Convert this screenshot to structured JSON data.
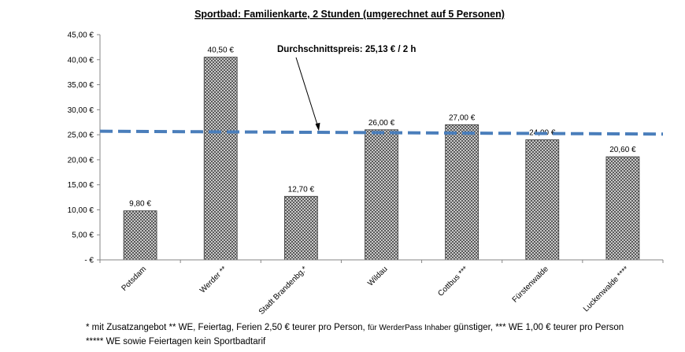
{
  "chart_data": {
    "type": "bar",
    "title": "Sportbad: Familienkarte, 2 Stunden (umgerechnet auf 5 Personen)",
    "categories": [
      "Potsdam",
      "Werder **",
      "Stadt Brandenbg.*",
      "Wildau",
      "Cottbus ***",
      "Fürstenwalde",
      "Luckenwalde ****"
    ],
    "values": [
      9.8,
      40.5,
      12.7,
      26.0,
      27.0,
      24.0,
      20.6
    ],
    "value_labels": [
      "9,80 €",
      "40,50 €",
      "12,70 €",
      "26,00 €",
      "27,00 €",
      "24,00 €",
      "20,60 €"
    ],
    "ylim": [
      0,
      45
    ],
    "ytick_values": [
      0,
      5,
      10,
      15,
      20,
      25,
      30,
      35,
      40,
      45
    ],
    "ytick_labels": [
      "- €",
      "5,00 €",
      "10,00 €",
      "15,00 €",
      "20,00 €",
      "25,00 €",
      "30,00 €",
      "35,00 €",
      "40,00 €",
      "45,00 €"
    ],
    "grid": false,
    "average_line": {
      "label": "Durchschnittspreis: 25,13 € / 2 h",
      "start_value": 25.7,
      "end_value": 25.13,
      "color": "#4a7ebb"
    },
    "bar_pattern_colors": {
      "dark": "#5a5a5a",
      "light": "#c8c8c8"
    }
  },
  "footnotes": {
    "line1_part1": "*  mit Zusatzangebot  ** WE, Feiertag, Ferien 2,50 € teurer pro Person, ",
    "line1_small": "für WerderPass Inhaber",
    "line1_part2": " günstiger, *** WE 1,00 € teurer pro Person",
    "line2": "***** WE sowie Feiertagen kein Sportbadtarif"
  }
}
